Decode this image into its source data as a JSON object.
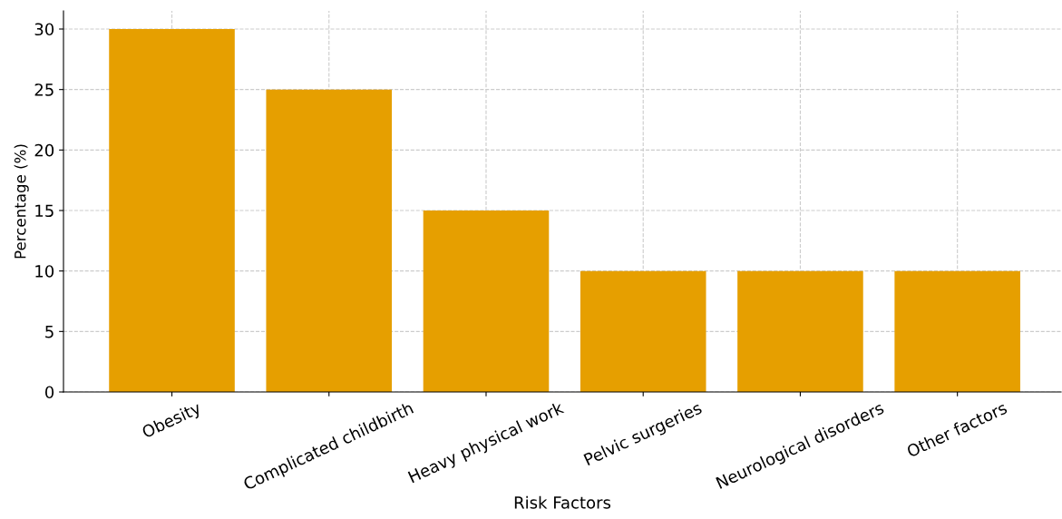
{
  "chart_data": {
    "type": "bar",
    "xlabel": "Risk Factors",
    "ylabel": "Percentage (%)",
    "categories": [
      "Obesity",
      "Complicated childbirth",
      "Heavy physical work",
      "Pelvic surgeries",
      "Neurological disorders",
      "Other factors"
    ],
    "values": [
      30,
      25,
      15,
      10,
      10,
      10
    ],
    "color": "#e69f00",
    "ylim": [
      0,
      31.5
    ],
    "yticks": [
      0,
      5,
      10,
      15,
      20,
      25,
      30
    ],
    "grid": true
  }
}
